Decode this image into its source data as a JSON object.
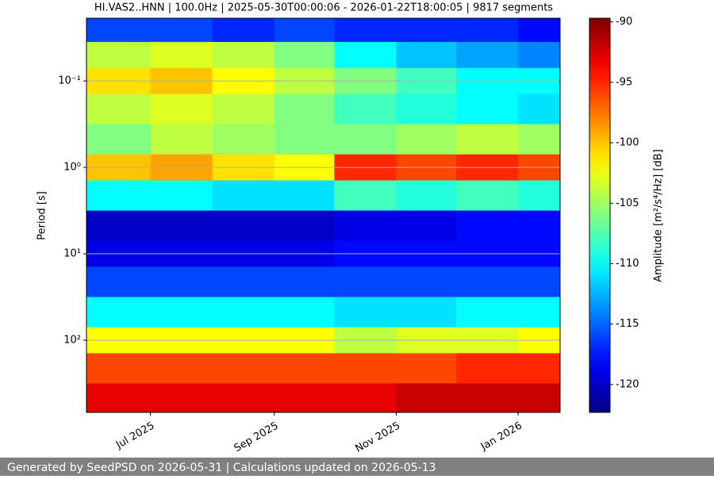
{
  "chart_data": {
    "type": "heatmap",
    "title": "HI.VAS2..HNN | 100.0Hz | 2025-05-30T00:00:06 - 2026-01-22T18:00:05 | 9817 segments",
    "y_label": "Period [s]",
    "colorbar_label": "Amplitude [m²/s⁴/Hz] [dB]",
    "colormap": "jet",
    "x": [
      "2025-06",
      "2025-07",
      "2025-08",
      "2025-09",
      "2025-10",
      "2025-11",
      "2025-12",
      "2026-01"
    ],
    "y": [
      0.025,
      0.05,
      0.1,
      0.2,
      0.5,
      1,
      2,
      5,
      10,
      20,
      50,
      100,
      200,
      500
    ],
    "z": [
      [
        -116,
        -116,
        -117,
        -116,
        -117,
        -117,
        -117,
        -118
      ],
      [
        -104,
        -103,
        -104,
        -106,
        -110,
        -112,
        -113,
        -114
      ],
      [
        -101,
        -100,
        -102,
        -104,
        -106,
        -108,
        -110,
        -110
      ],
      [
        -104,
        -103,
        -104,
        -106,
        -108,
        -109,
        -110,
        -111
      ],
      [
        -106,
        -104,
        -105,
        -106,
        -106,
        -105,
        -104,
        -105
      ],
      [
        -100,
        -99,
        -101,
        -102,
        -95,
        -96,
        -95,
        -96
      ],
      [
        -110,
        -110,
        -111,
        -111,
        -108,
        -109,
        -108,
        -109
      ],
      [
        -120,
        -120,
        -120,
        -120,
        -119,
        -119,
        -118,
        -118
      ],
      [
        -119,
        -119,
        -119,
        -119,
        -118,
        -118,
        -118,
        -118
      ],
      [
        -116,
        -116,
        -116,
        -116,
        -116,
        -116,
        -116,
        -116
      ],
      [
        -110,
        -110,
        -110,
        -110,
        -111,
        -111,
        -110,
        -110
      ],
      [
        -102,
        -102,
        -102,
        -102,
        -104,
        -103,
        -103,
        -102
      ],
      [
        -96,
        -96,
        -96,
        -96,
        -96,
        -96,
        -95,
        -95
      ],
      [
        -93,
        -93,
        -93,
        -93,
        -93,
        -92,
        -92,
        -92
      ]
    ],
    "xlim": [
      "2025-05-30",
      "2026-01-22"
    ],
    "xticks": [
      {
        "value": "2025-07",
        "label": "Jul 2025"
      },
      {
        "value": "2025-09",
        "label": "Sep 2025"
      },
      {
        "value": "2025-11",
        "label": "Nov 2025"
      },
      {
        "value": "2026-01",
        "label": "Jan 2026"
      }
    ],
    "ylim": [
      0.0188,
      684
    ],
    "y_log": true,
    "y_inverted": true,
    "yticks": [
      {
        "value": 0.1,
        "label": "10⁻¹"
      },
      {
        "value": 1,
        "label": "10⁰"
      },
      {
        "value": 10,
        "label": "10¹"
      },
      {
        "value": 100,
        "label": "10²"
      }
    ],
    "grid": true,
    "zlim": [
      -122.3,
      -89.7
    ],
    "zticks": [
      -90,
      -95,
      -100,
      -105,
      -110,
      -115,
      -120
    ]
  },
  "footer": "Generated by SeedPSD on 2026-05-31 | Calculations updated on 2026-05-13"
}
